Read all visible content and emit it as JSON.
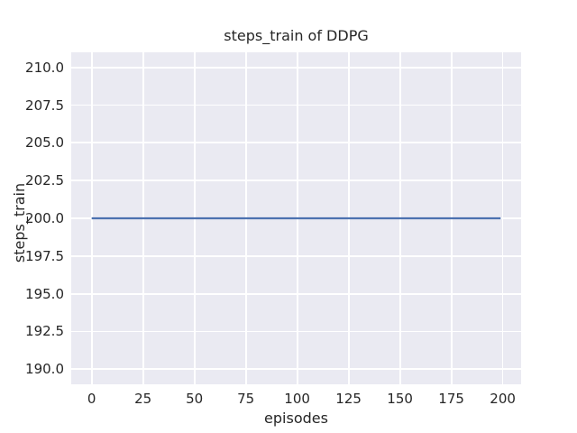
{
  "chart_data": {
    "type": "line",
    "title": "steps_train of DDPG",
    "xlabel": "episodes",
    "ylabel": "steps_train",
    "x_ticks": [
      0,
      25,
      50,
      75,
      100,
      125,
      150,
      175,
      200
    ],
    "x_tick_labels": [
      "0",
      "25",
      "50",
      "75",
      "100",
      "125",
      "150",
      "175",
      "200"
    ],
    "y_ticks": [
      190.0,
      192.5,
      195.0,
      197.5,
      200.0,
      202.5,
      205.0,
      207.5,
      210.0
    ],
    "y_tick_labels": [
      "190.0",
      "192.5",
      "195.0",
      "197.5",
      "200.0",
      "202.5",
      "205.0",
      "207.5",
      "210.0"
    ],
    "xlim": [
      -9.95,
      208.95
    ],
    "ylim": [
      189.0,
      211.0
    ],
    "grid": true,
    "legend": "none",
    "series": [
      {
        "x": [
          0,
          199
        ],
        "y": [
          200,
          200
        ],
        "color": "#4c72b0",
        "constant_value": 200
      }
    ],
    "colors": {
      "plot_background": "#eaeaf2",
      "figure_background": "#ffffff",
      "gridline": "#ffffff",
      "text": "#262626",
      "line": "#4c72b0"
    }
  }
}
